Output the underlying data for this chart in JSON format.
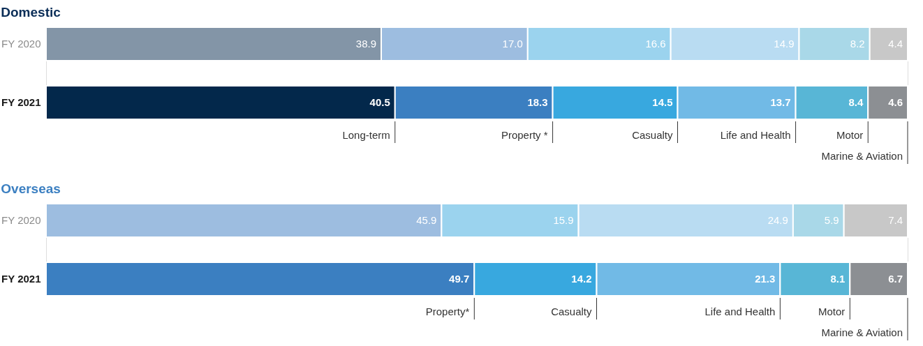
{
  "chart_data": [
    {
      "type": "bar",
      "title": "Domestic",
      "orientation": "horizontal",
      "stacked": true,
      "categories": [
        "FY 2020",
        "FY 2021"
      ],
      "xlim": [
        0,
        100
      ],
      "tick_labels": "y",
      "series": [
        {
          "name": "Long-term",
          "colors": [
            "#8395a7",
            "#03284b"
          ],
          "values": [
            38.9,
            40.5
          ],
          "value_labels": [
            "38.9",
            "40.5"
          ]
        },
        {
          "name": "Property *",
          "colors": [
            "#9dbde0",
            "#3b7fc1"
          ],
          "values": [
            17.0,
            18.3
          ],
          "value_labels": [
            "17.0",
            "18.3"
          ]
        },
        {
          "name": "Casualty",
          "colors": [
            "#9bd3ee",
            "#38a8df"
          ],
          "values": [
            16.6,
            14.5
          ],
          "value_labels": [
            "16.6",
            "14.5"
          ]
        },
        {
          "name": "Life and Health",
          "colors": [
            "#b9dcf2",
            "#71bae6"
          ],
          "values": [
            14.9,
            13.7
          ],
          "value_labels": [
            "14.9",
            "13.7"
          ]
        },
        {
          "name": "Motor",
          "colors": [
            "#a9d8e8",
            "#58b6d6"
          ],
          "values": [
            8.2,
            8.4
          ],
          "value_labels": [
            "8.2",
            "8.4"
          ]
        },
        {
          "name": "Marine & Aviation",
          "colors": [
            "#c8c8c8",
            "#8c8f93"
          ],
          "values": [
            4.4,
            4.6
          ],
          "value_labels": [
            "4.4",
            "4.6"
          ]
        }
      ]
    },
    {
      "type": "bar",
      "title": "Overseas",
      "orientation": "horizontal",
      "stacked": true,
      "categories": [
        "FY 2020",
        "FY 2021"
      ],
      "xlim": [
        0,
        100
      ],
      "tick_labels": "y",
      "series": [
        {
          "name": "Property*",
          "colors": [
            "#9dbde0",
            "#3b7fc1"
          ],
          "values": [
            45.9,
            49.7
          ],
          "value_labels": [
            "45.9",
            "49.7"
          ]
        },
        {
          "name": "Casualty",
          "colors": [
            "#9bd3ee",
            "#38a8df"
          ],
          "values": [
            15.9,
            14.2
          ],
          "value_labels": [
            "15.9",
            "14.2"
          ]
        },
        {
          "name": "Life and Health",
          "colors": [
            "#b9dcf2",
            "#71bae6"
          ],
          "values": [
            24.9,
            21.3
          ],
          "value_labels": [
            "24.9",
            "21.3"
          ]
        },
        {
          "name": "Motor",
          "colors": [
            "#a9d8e8",
            "#58b6d6"
          ],
          "values": [
            5.9,
            8.1
          ],
          "value_labels": [
            "5.9",
            "8.1"
          ]
        },
        {
          "name": "Marine & Aviation",
          "colors": [
            "#c8c8c8",
            "#8c8f93"
          ],
          "values": [
            7.4,
            6.7
          ],
          "value_labels": [
            "7.4",
            "6.7"
          ]
        }
      ]
    }
  ]
}
